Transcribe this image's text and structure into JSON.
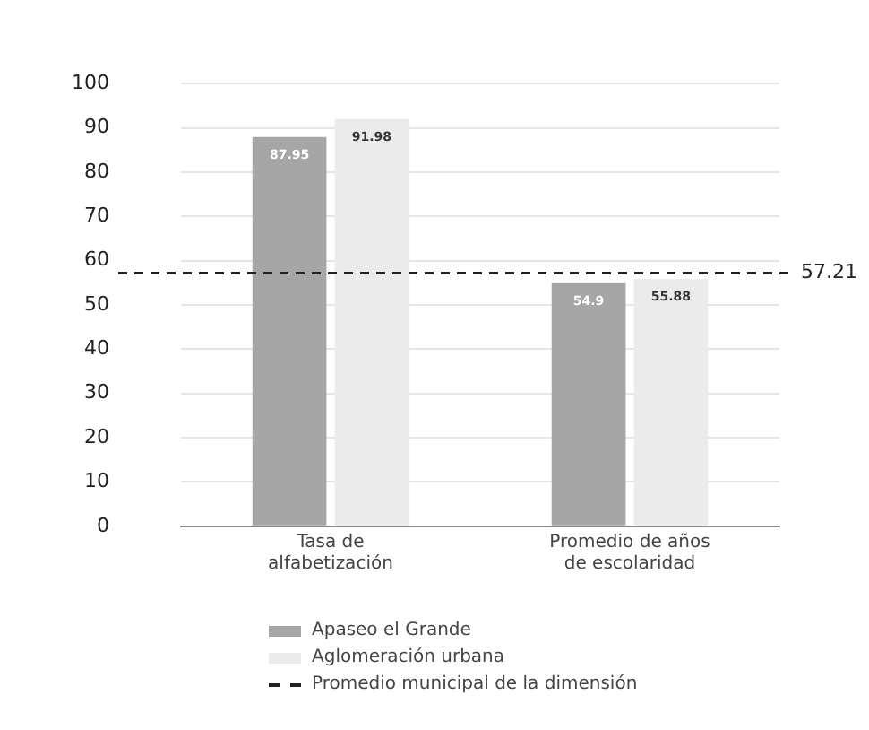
{
  "chart_data": {
    "type": "bar",
    "categories": [
      "Tasa de alfabetización",
      "Promedio de años de escolaridad"
    ],
    "series": [
      {
        "name": "Apaseo el Grande",
        "color": "#a6a6a6",
        "values": [
          87.95,
          54.9
        ]
      },
      {
        "name": "Aglomeración urbana",
        "color": "#ebebeb",
        "values": [
          91.98,
          55.88
        ]
      }
    ],
    "ylim": [
      0,
      100
    ],
    "yticks": [
      0,
      10,
      20,
      30,
      40,
      50,
      60,
      70,
      80,
      90,
      100
    ],
    "grid": "y",
    "legend": "bottom",
    "data_labels": true,
    "ref_lines": [
      {
        "axis": "y",
        "value": 57.21,
        "label": "Promedio municipal de la dimensión",
        "color": "#222222",
        "line_style": "dashed"
      }
    ],
    "annotations": [
      "57.21"
    ]
  }
}
